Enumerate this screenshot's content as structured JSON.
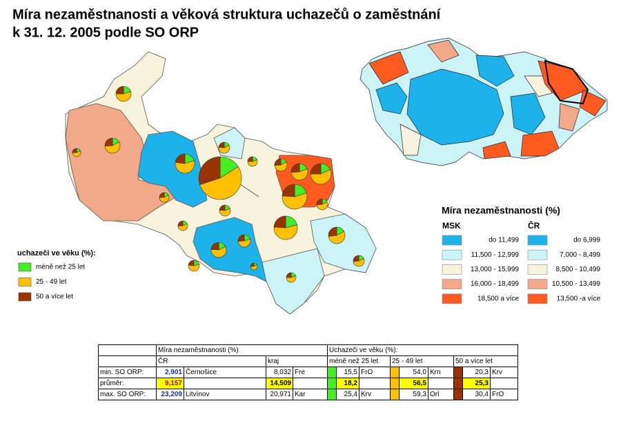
{
  "title": [
    "Míra nezaměstnanosti a věková struktura uchazečů o zaměstnání",
    "k 31. 12. 2005 podle SO ORP"
  ],
  "age_legend": {
    "title": "uchazeči ve věku (%):",
    "items": [
      {
        "label": "méně než 25 let",
        "color": "#44ee22"
      },
      {
        "label": "25 - 49 let",
        "color": "#ffc000"
      },
      {
        "label": "50 a více let",
        "color": "#993300"
      }
    ]
  },
  "rate_legend": {
    "title": "Míra nezaměstnanosti (%)",
    "columns": [
      {
        "name": "MSK",
        "items": [
          {
            "label": "do 11,499",
            "color": "#1eb2ea"
          },
          {
            "label": "11,500 - 12,999",
            "color": "#ccf4f7"
          },
          {
            "label": "13,000 - 15,999",
            "color": "#f7f3dc"
          },
          {
            "label": "16,000 - 18,499",
            "color": "#f2a98a"
          },
          {
            "label": "18,500 a více",
            "color": "#ff5a1f"
          }
        ]
      },
      {
        "name": "ČR",
        "items": [
          {
            "label": "do 6,999",
            "color": "#1eb2ea"
          },
          {
            "label": "7,000 -  8,499",
            "color": "#ccf4f7"
          },
          {
            "label": "8,500 - 10,499",
            "color": "#f7f3dc"
          },
          {
            "label": "10,500 - 13,499",
            "color": "#f2a98a"
          },
          {
            "label": "13,500 -a více",
            "color": "#ff5a1f"
          }
        ]
      }
    ]
  },
  "pie_charts": [
    {
      "values": [
        20,
        55,
        25
      ]
    },
    {
      "values": [
        17,
        57,
        26
      ]
    },
    {
      "values": [
        18,
        56,
        26
      ]
    },
    {
      "values": [
        20,
        57,
        23
      ]
    },
    {
      "values": [
        16,
        54,
        30
      ]
    },
    {
      "values": [
        18,
        58,
        24
      ]
    },
    {
      "values": [
        19,
        56,
        25
      ]
    },
    {
      "values": [
        17,
        57,
        26
      ]
    },
    {
      "values": [
        19,
        55,
        26
      ]
    },
    {
      "values": [
        18,
        57,
        25
      ]
    },
    {
      "values": [
        20,
        56,
        24
      ]
    },
    {
      "values": [
        18,
        55,
        27
      ]
    },
    {
      "values": [
        17,
        58,
        25
      ]
    },
    {
      "values": [
        19,
        57,
        24
      ]
    },
    {
      "values": [
        18,
        56,
        26
      ]
    },
    {
      "values": [
        21,
        55,
        24
      ]
    },
    {
      "values": [
        17,
        56,
        27
      ]
    },
    {
      "values": [
        20,
        54,
        26
      ]
    },
    {
      "values": [
        18,
        58,
        24
      ]
    },
    {
      "values": [
        19,
        56,
        25
      ]
    },
    {
      "values": [
        17,
        57,
        26
      ]
    },
    {
      "values": [
        18,
        55,
        27
      ]
    },
    {
      "values": [
        20,
        57,
        23
      ]
    }
  ],
  "table": {
    "header": [
      "Míra nezaměstnanosti (%)",
      "Uchazeči ve věku (%):"
    ],
    "subheader": [
      "ČR",
      "kraj",
      "méně než 25 let",
      "25 - 49 let",
      "50 a více let"
    ],
    "rows": [
      {
        "label": "min. SO ORP:",
        "cr": [
          "2,901",
          "Černošice"
        ],
        "kraj": [
          "8,032",
          "Fre"
        ],
        "age": [
          [
            "15,5",
            "FrO"
          ],
          [
            "54,0",
            "Krn"
          ],
          [
            "20,3",
            "Krv"
          ]
        ]
      },
      {
        "label": "průměr:",
        "cr": [
          "9,157"
        ],
        "kraj": [
          "14,509"
        ],
        "age": [
          [
            "18,2"
          ],
          [
            "56,5"
          ],
          [
            "25,3"
          ]
        ]
      },
      {
        "label": "max. SO ORP:",
        "cr": [
          "23,209",
          "Litvínov"
        ],
        "kraj": [
          "20,971",
          "Kar"
        ],
        "age": [
          [
            "25,4",
            "Krv"
          ],
          [
            "59,3",
            "Orl"
          ],
          [
            "30,4",
            "FrO"
          ]
        ]
      }
    ]
  }
}
